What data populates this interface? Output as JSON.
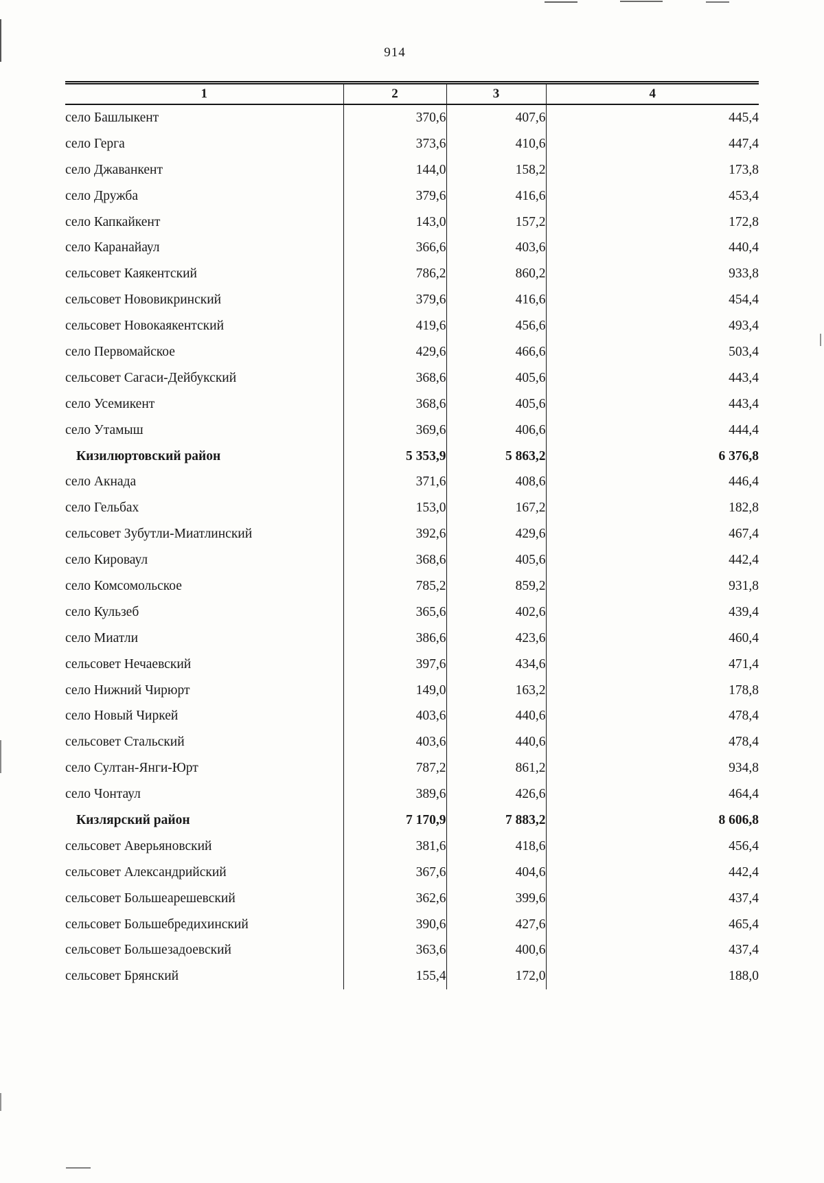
{
  "page": {
    "number": "914"
  },
  "table": {
    "headers": [
      "1",
      "2",
      "3",
      "4"
    ],
    "rows": [
      {
        "name": "село Башлыкент",
        "v2": "370,6",
        "v3": "407,6",
        "v4": "445,4",
        "bold": false
      },
      {
        "name": "село Герга",
        "v2": "373,6",
        "v3": "410,6",
        "v4": "447,4",
        "bold": false
      },
      {
        "name": "село Джаванкент",
        "v2": "144,0",
        "v3": "158,2",
        "v4": "173,8",
        "bold": false
      },
      {
        "name": "село Дружба",
        "v2": "379,6",
        "v3": "416,6",
        "v4": "453,4",
        "bold": false
      },
      {
        "name": "село Капкайкент",
        "v2": "143,0",
        "v3": "157,2",
        "v4": "172,8",
        "bold": false
      },
      {
        "name": "село Каранайаул",
        "v2": "366,6",
        "v3": "403,6",
        "v4": "440,4",
        "bold": false
      },
      {
        "name": "сельсовет Каякентский",
        "v2": "786,2",
        "v3": "860,2",
        "v4": "933,8",
        "bold": false
      },
      {
        "name": "сельсовет Нововикринский",
        "v2": "379,6",
        "v3": "416,6",
        "v4": "454,4",
        "bold": false
      },
      {
        "name": "сельсовет Новокаякентский",
        "v2": "419,6",
        "v3": "456,6",
        "v4": "493,4",
        "bold": false
      },
      {
        "name": "село Первомайское",
        "v2": "429,6",
        "v3": "466,6",
        "v4": "503,4",
        "bold": false
      },
      {
        "name": "сельсовет Сагаси-Дейбукский",
        "v2": "368,6",
        "v3": "405,6",
        "v4": "443,4",
        "bold": false
      },
      {
        "name": "село Усемикент",
        "v2": "368,6",
        "v3": "405,6",
        "v4": "443,4",
        "bold": false
      },
      {
        "name": "село Утамыш",
        "v2": "369,6",
        "v3": "406,6",
        "v4": "444,4",
        "bold": false
      },
      {
        "name": "Кизилюртовский район",
        "v2": "5 353,9",
        "v3": "5 863,2",
        "v4": "6 376,8",
        "bold": true
      },
      {
        "name": "село Акнада",
        "v2": "371,6",
        "v3": "408,6",
        "v4": "446,4",
        "bold": false
      },
      {
        "name": "село Гельбах",
        "v2": "153,0",
        "v3": "167,2",
        "v4": "182,8",
        "bold": false
      },
      {
        "name": "сельсовет Зубутли-Миатлинский",
        "v2": "392,6",
        "v3": "429,6",
        "v4": "467,4",
        "bold": false
      },
      {
        "name": "село Кироваул",
        "v2": "368,6",
        "v3": "405,6",
        "v4": "442,4",
        "bold": false
      },
      {
        "name": "село Комсомольское",
        "v2": "785,2",
        "v3": "859,2",
        "v4": "931,8",
        "bold": false
      },
      {
        "name": "село Кульзеб",
        "v2": "365,6",
        "v3": "402,6",
        "v4": "439,4",
        "bold": false
      },
      {
        "name": "село Миатли",
        "v2": "386,6",
        "v3": "423,6",
        "v4": "460,4",
        "bold": false
      },
      {
        "name": "сельсовет Нечаевский",
        "v2": "397,6",
        "v3": "434,6",
        "v4": "471,4",
        "bold": false
      },
      {
        "name": "село Нижний Чирюрт",
        "v2": "149,0",
        "v3": "163,2",
        "v4": "178,8",
        "bold": false
      },
      {
        "name": "село Новый Чиркей",
        "v2": "403,6",
        "v3": "440,6",
        "v4": "478,4",
        "bold": false
      },
      {
        "name": "сельсовет Стальский",
        "v2": "403,6",
        "v3": "440,6",
        "v4": "478,4",
        "bold": false
      },
      {
        "name": "село Султан-Янги-Юрт",
        "v2": "787,2",
        "v3": "861,2",
        "v4": "934,8",
        "bold": false
      },
      {
        "name": "село Чонтаул",
        "v2": "389,6",
        "v3": "426,6",
        "v4": "464,4",
        "bold": false
      },
      {
        "name": "Кизлярский район",
        "v2": "7 170,9",
        "v3": "7 883,2",
        "v4": "8 606,8",
        "bold": true
      },
      {
        "name": "сельсовет Аверьяновский",
        "v2": "381,6",
        "v3": "418,6",
        "v4": "456,4",
        "bold": false
      },
      {
        "name": "сельсовет Александрийский",
        "v2": "367,6",
        "v3": "404,6",
        "v4": "442,4",
        "bold": false
      },
      {
        "name": "сельсовет Большеарешевский",
        "v2": "362,6",
        "v3": "399,6",
        "v4": "437,4",
        "bold": false
      },
      {
        "name": "сельсовет Большебредихинский",
        "v2": "390,6",
        "v3": "427,6",
        "v4": "465,4",
        "bold": false
      },
      {
        "name": "сельсовет Большезадоевский",
        "v2": "363,6",
        "v3": "400,6",
        "v4": "437,4",
        "bold": false
      },
      {
        "name": "сельсовет Брянский",
        "v2": "155,4",
        "v3": "172,0",
        "v4": "188,0",
        "bold": false
      }
    ]
  }
}
